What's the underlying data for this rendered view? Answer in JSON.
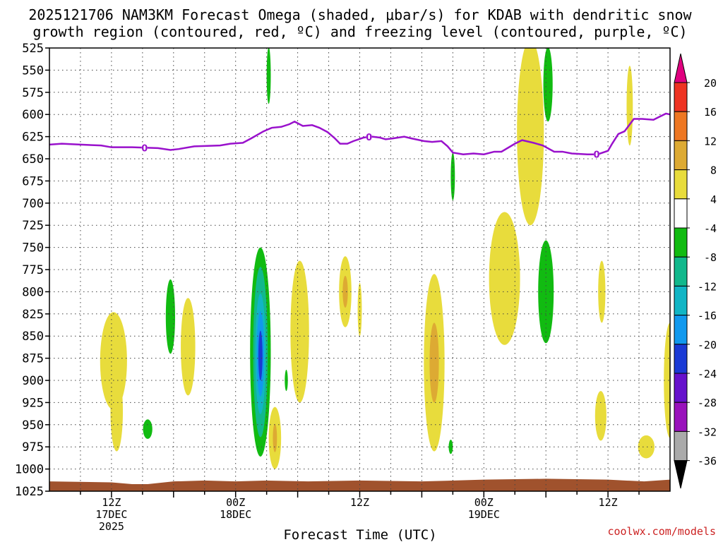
{
  "chart_data": {
    "type": "time-height cross section (shaded contour)",
    "title_lines": [
      "2025121706 NAM3KM Forecast Omega (shaded, μbar/s) for KDAB with dendritic snow",
      "growth region (contoured, red, ºC) and freezing level (contoured, purple, ºC)"
    ],
    "xlabel": "Forecast Time (UTC)",
    "credit": "coolwx.com/models",
    "y_axis": {
      "unit": "hPa",
      "range": [
        525,
        1025
      ],
      "ticks": [
        "525",
        "550",
        "575",
        "600",
        "625",
        "650",
        "675",
        "700",
        "725",
        "750",
        "775",
        "800",
        "825",
        "850",
        "875",
        "900",
        "925",
        "950",
        "975",
        "1000",
        "1025"
      ]
    },
    "x_axis": {
      "unit": "forecast hour",
      "range": [
        0,
        60
      ],
      "ticks": [
        {
          "hour": 6,
          "lines": [
            "12Z",
            "17DEC",
            "2025"
          ]
        },
        {
          "hour": 18,
          "lines": [
            "00Z",
            "18DEC"
          ]
        },
        {
          "hour": 30,
          "lines": [
            "12Z"
          ]
        },
        {
          "hour": 42,
          "lines": [
            "00Z",
            "19DEC"
          ]
        },
        {
          "hour": 54,
          "lines": [
            "12Z"
          ]
        }
      ]
    },
    "colorbar": {
      "tick_labels": [
        "20",
        "16",
        "12",
        "8",
        "4",
        "-4",
        "-8",
        "-12",
        "-16",
        "-20",
        "-24",
        "-28",
        "-32",
        "-36"
      ],
      "colors": {
        "ge20": "#e0007f",
        "16_20": "#ee3322",
        "12_16": "#ee7722",
        "8_12": "#ddaa33",
        "4_8": "#e8dc3c",
        "m4_4": "#ffffff",
        "m8_m4": "#11bb11",
        "m12_m8": "#11b88c",
        "m16_m12": "#11b5c5",
        "m20_m16": "#1199ee",
        "m24_m20": "#1a3ad5",
        "m28_m24": "#6611cc",
        "m32_m28": "#9911bb",
        "m36_m32": "#aaaaaa",
        "le_m36": "#000000"
      }
    },
    "freezing_level": {
      "color": "#9911cc",
      "label": "0",
      "label_hours": [
        9.2,
        30.9,
        52.9
      ],
      "series": [
        {
          "h": 0.0,
          "p": 634
        },
        {
          "h": 1.2,
          "p": 633
        },
        {
          "h": 3.0,
          "p": 634
        },
        {
          "h": 5.0,
          "p": 635
        },
        {
          "h": 6.0,
          "p": 637
        },
        {
          "h": 8.0,
          "p": 637
        },
        {
          "h": 10.5,
          "p": 638
        },
        {
          "h": 11.7,
          "p": 640
        },
        {
          "h": 12.5,
          "p": 639
        },
        {
          "h": 14.0,
          "p": 636
        },
        {
          "h": 16.5,
          "p": 635
        },
        {
          "h": 17.5,
          "p": 633
        },
        {
          "h": 18.7,
          "p": 632
        },
        {
          "h": 19.5,
          "p": 627
        },
        {
          "h": 20.7,
          "p": 619
        },
        {
          "h": 21.5,
          "p": 615
        },
        {
          "h": 22.4,
          "p": 614
        },
        {
          "h": 23.2,
          "p": 611
        },
        {
          "h": 23.7,
          "p": 608
        },
        {
          "h": 24.5,
          "p": 613
        },
        {
          "h": 25.4,
          "p": 612
        },
        {
          "h": 26.1,
          "p": 615
        },
        {
          "h": 26.9,
          "p": 620
        },
        {
          "h": 27.6,
          "p": 627
        },
        {
          "h": 28.1,
          "p": 633
        },
        {
          "h": 28.8,
          "p": 633
        },
        {
          "h": 29.4,
          "p": 630
        },
        {
          "h": 30.4,
          "p": 626
        },
        {
          "h": 31.2,
          "p": 625
        },
        {
          "h": 31.9,
          "p": 626
        },
        {
          "h": 32.5,
          "p": 628
        },
        {
          "h": 33.2,
          "p": 627
        },
        {
          "h": 34.3,
          "p": 625
        },
        {
          "h": 35.0,
          "p": 627
        },
        {
          "h": 36.2,
          "p": 630
        },
        {
          "h": 37.0,
          "p": 631
        },
        {
          "h": 37.9,
          "p": 630
        },
        {
          "h": 38.5,
          "p": 636
        },
        {
          "h": 39.0,
          "p": 643
        },
        {
          "h": 40.0,
          "p": 645
        },
        {
          "h": 41.0,
          "p": 644
        },
        {
          "h": 42.0,
          "p": 645
        },
        {
          "h": 43.0,
          "p": 642
        },
        {
          "h": 43.7,
          "p": 642
        },
        {
          "h": 45.0,
          "p": 633
        },
        {
          "h": 45.7,
          "p": 629
        },
        {
          "h": 46.8,
          "p": 632
        },
        {
          "h": 47.7,
          "p": 635
        },
        {
          "h": 48.8,
          "p": 642
        },
        {
          "h": 49.6,
          "p": 642
        },
        {
          "h": 50.5,
          "p": 644
        },
        {
          "h": 52.0,
          "p": 645
        },
        {
          "h": 53.0,
          "p": 645
        },
        {
          "h": 54.0,
          "p": 641
        },
        {
          "h": 54.4,
          "p": 633
        },
        {
          "h": 55.0,
          "p": 622
        },
        {
          "h": 55.6,
          "p": 619
        },
        {
          "h": 56.5,
          "p": 605
        },
        {
          "h": 57.3,
          "p": 605
        },
        {
          "h": 58.4,
          "p": 606
        },
        {
          "h": 58.9,
          "p": 603
        },
        {
          "h": 59.6,
          "p": 599
        },
        {
          "h": 60.0,
          "p": 600
        }
      ]
    },
    "surface_layer": {
      "color": "#a0522d",
      "series": [
        {
          "h": 0,
          "p": 1014
        },
        {
          "h": 6,
          "p": 1015
        },
        {
          "h": 8,
          "p": 1017
        },
        {
          "h": 9.5,
          "p": 1017
        },
        {
          "h": 12,
          "p": 1014
        },
        {
          "h": 15,
          "p": 1013
        },
        {
          "h": 18,
          "p": 1014
        },
        {
          "h": 21,
          "p": 1013
        },
        {
          "h": 25,
          "p": 1014
        },
        {
          "h": 30,
          "p": 1013
        },
        {
          "h": 36,
          "p": 1014
        },
        {
          "h": 42,
          "p": 1012
        },
        {
          "h": 48,
          "p": 1011
        },
        {
          "h": 54,
          "p": 1012
        },
        {
          "h": 57.5,
          "p": 1014
        },
        {
          "h": 60,
          "p": 1012
        }
      ]
    },
    "omega_regions": [
      {
        "band": "4_8",
        "h": 6.2,
        "p": 878,
        "rh": 1.3,
        "rp": 55
      },
      {
        "band": "4_8",
        "h": 6.5,
        "p": 935,
        "rh": 0.6,
        "rp": 45
      },
      {
        "band": "m8_m4",
        "h": 9.5,
        "p": 955,
        "rh": 0.45,
        "rp": 11
      },
      {
        "band": "m8_m4",
        "h": 11.7,
        "p": 828,
        "rh": 0.45,
        "rp": 42
      },
      {
        "band": "4_8",
        "h": 13.4,
        "p": 862,
        "rh": 0.7,
        "rp": 55
      },
      {
        "band": "m8_m4",
        "h": 21.2,
        "p": 556,
        "rh": 0.2,
        "rp": 32
      },
      {
        "band": "m8_m4",
        "h": 20.4,
        "p": 868,
        "rh": 1.0,
        "rp": 118
      },
      {
        "band": "m12_m8",
        "h": 20.4,
        "p": 868,
        "rh": 0.7,
        "rp": 96
      },
      {
        "band": "m16_m12",
        "h": 20.4,
        "p": 870,
        "rh": 0.5,
        "rp": 68
      },
      {
        "band": "m20_m16",
        "h": 20.4,
        "p": 870,
        "rh": 0.35,
        "rp": 48
      },
      {
        "band": "m24_m20",
        "h": 20.4,
        "p": 872,
        "rh": 0.2,
        "rp": 28
      },
      {
        "band": "m8_m4",
        "h": 22.9,
        "p": 900,
        "rh": 0.15,
        "rp": 12
      },
      {
        "band": "4_8",
        "h": 21.8,
        "p": 965,
        "rh": 0.6,
        "rp": 35
      },
      {
        "band": "8_12",
        "h": 21.8,
        "p": 965,
        "rh": 0.2,
        "rp": 16
      },
      {
        "band": "4_8",
        "h": 24.2,
        "p": 845,
        "rh": 0.9,
        "rp": 80
      },
      {
        "band": "4_8",
        "h": 28.6,
        "p": 800,
        "rh": 0.6,
        "rp": 40
      },
      {
        "band": "8_12",
        "h": 28.6,
        "p": 800,
        "rh": 0.25,
        "rp": 18
      },
      {
        "band": "4_8",
        "h": 30.0,
        "p": 820,
        "rh": 0.2,
        "rp": 30
      },
      {
        "band": "4_8",
        "h": 37.2,
        "p": 880,
        "rh": 1.0,
        "rp": 100
      },
      {
        "band": "8_12",
        "h": 37.2,
        "p": 880,
        "rh": 0.45,
        "rp": 45
      },
      {
        "band": "m8_m4",
        "h": 38.8,
        "p": 975,
        "rh": 0.2,
        "rp": 8
      },
      {
        "band": "m8_m4",
        "h": 39.0,
        "p": 670,
        "rh": 0.2,
        "rp": 27
      },
      {
        "band": "4_8",
        "h": 46.5,
        "p": 620,
        "rh": 1.3,
        "rp": 105
      },
      {
        "band": "4_8",
        "h": 44.0,
        "p": 785,
        "rh": 1.5,
        "rp": 75
      },
      {
        "band": "m8_m4",
        "h": 48.2,
        "p": 566,
        "rh": 0.45,
        "rp": 42
      },
      {
        "band": "m8_m4",
        "h": 48.0,
        "p": 800,
        "rh": 0.75,
        "rp": 58
      },
      {
        "band": "4_8",
        "h": 53.4,
        "p": 800,
        "rh": 0.35,
        "rp": 35
      },
      {
        "band": "4_8",
        "h": 53.3,
        "p": 940,
        "rh": 0.55,
        "rp": 28
      },
      {
        "band": "4_8",
        "h": 56.1,
        "p": 590,
        "rh": 0.3,
        "rp": 45
      },
      {
        "band": "4_8",
        "h": 57.7,
        "p": 975,
        "rh": 0.8,
        "rp": 13
      },
      {
        "band": "4_8",
        "h": 60.0,
        "p": 900,
        "rh": 0.6,
        "rp": 65
      }
    ]
  }
}
